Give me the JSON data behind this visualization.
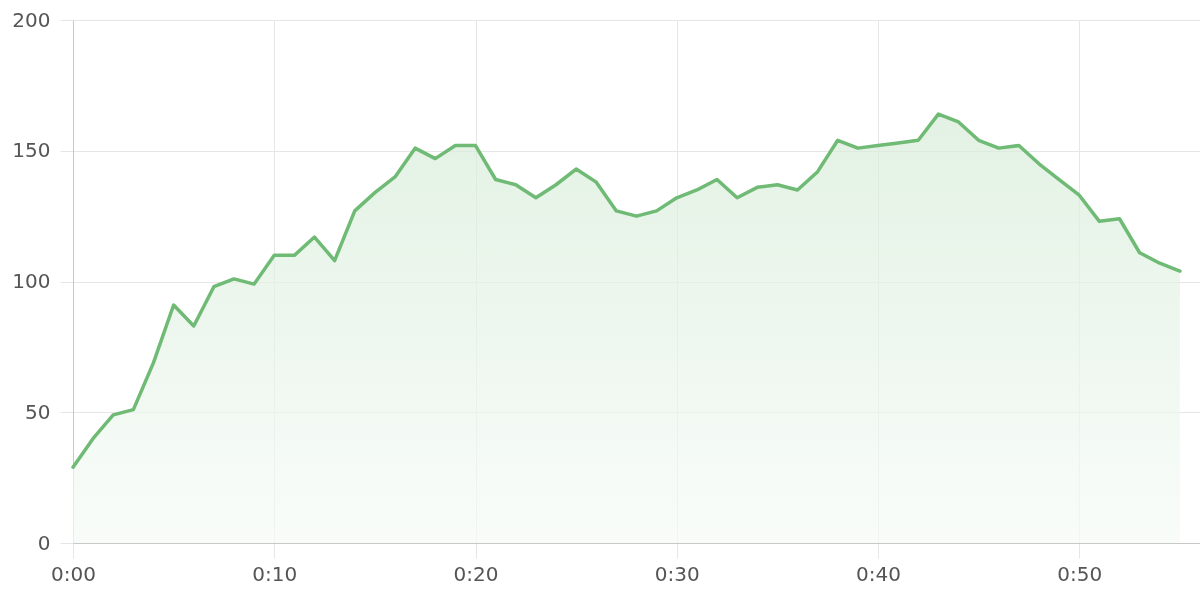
{
  "chart_data": {
    "type": "area",
    "x": [
      0,
      1,
      2,
      3,
      4,
      5,
      6,
      7,
      8,
      9,
      10,
      11,
      12,
      13,
      14,
      15,
      16,
      17,
      18,
      19,
      20,
      21,
      22,
      23,
      24,
      25,
      26,
      27,
      28,
      29,
      30,
      31,
      32,
      33,
      34,
      35,
      36,
      37,
      38,
      39,
      40,
      41,
      42,
      43,
      44,
      45,
      46,
      47,
      48,
      49,
      50,
      51,
      52,
      53,
      54,
      55
    ],
    "series": [
      {
        "color": "#6fba74",
        "values": [
          29,
          40,
          49,
          51,
          69,
          91,
          83,
          98,
          101,
          99,
          110,
          110,
          117,
          108,
          127,
          134,
          140,
          151,
          147,
          152,
          152,
          139,
          137,
          132,
          137,
          143,
          138,
          127,
          125,
          127,
          132,
          135,
          139,
          132,
          136,
          137,
          135,
          142,
          154,
          151,
          152,
          153,
          154,
          164,
          161,
          154,
          151,
          152,
          145,
          139,
          133,
          123,
          124,
          111,
          107,
          104
        ]
      }
    ],
    "xlim": [
      0,
      56
    ],
    "xticks": [
      {
        "value": 0,
        "label": "0:00"
      },
      {
        "value": 10,
        "label": "0:10"
      },
      {
        "value": 20,
        "label": "0:20"
      },
      {
        "value": 30,
        "label": "0:30"
      },
      {
        "value": 40,
        "label": "0:40"
      },
      {
        "value": 50,
        "label": "0:50"
      }
    ],
    "ylim": [
      0,
      200
    ],
    "yticks": [
      0,
      50,
      100,
      150,
      200
    ],
    "grid": true
  }
}
